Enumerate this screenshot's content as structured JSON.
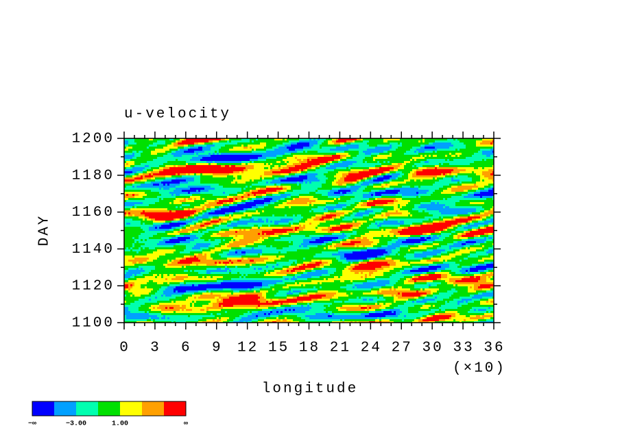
{
  "chart_data": {
    "type": "contour",
    "title": "u-velocity",
    "xlabel": "longitude",
    "ylabel": "DAY",
    "x_multiplier_label": "(×10)",
    "xlim": [
      0,
      36
    ],
    "xticks": [
      0,
      3,
      6,
      9,
      12,
      15,
      18,
      21,
      24,
      27,
      30,
      33,
      36
    ],
    "ylim": [
      1100,
      1200
    ],
    "yticks": [
      1100,
      1120,
      1140,
      1160,
      1180,
      1200
    ],
    "colorbar": {
      "colors": [
        "#0000ff",
        "#00a0ff",
        "#00ffb0",
        "#00e000",
        "#ffff00",
        "#ffa000",
        "#ff0000"
      ],
      "levels": [
        {
          "label": "−∞"
        },
        null,
        {
          "value": -3,
          "label": "−3.00"
        },
        null,
        {
          "value": 1,
          "label": "1.00"
        },
        null,
        null,
        {
          "label": "∞"
        }
      ]
    }
  }
}
